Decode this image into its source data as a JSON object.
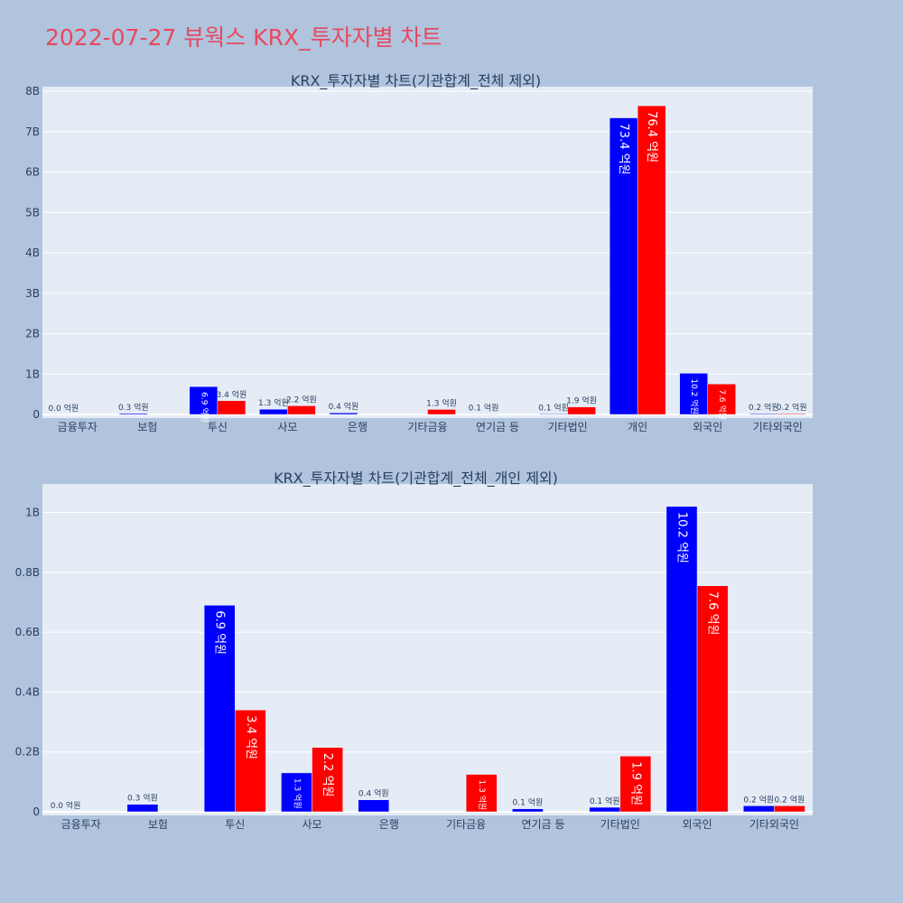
{
  "page_title": "2022-07-27 뷰웍스 KRX_투자자별 차트",
  "colors": {
    "buy": "#0000ff",
    "sell": "#ff0000",
    "plot_bg": "#e5ecf6",
    "page_bg": "#b0c4de",
    "title": "#e8485e",
    "text": "#2a3f5f"
  },
  "chart_data": [
    {
      "type": "bar",
      "title": "KRX_투자자별 차트(기관합계_전체 제외)",
      "xlabel": "",
      "ylabel": "",
      "categories": [
        "금융투자",
        "보험",
        "투신",
        "사모",
        "은행",
        "기타금융",
        "연기금 등",
        "기타법인",
        "개인",
        "외국인",
        "기타외국인"
      ],
      "ylim": [
        0,
        8000000000
      ],
      "yticks": [
        0,
        1000000000,
        2000000000,
        3000000000,
        4000000000,
        5000000000,
        6000000000,
        7000000000,
        8000000000
      ],
      "ytick_labels": [
        "0",
        "1B",
        "2B",
        "3B",
        "4B",
        "5B",
        "6B",
        "7B",
        "8B"
      ],
      "grid": true,
      "series": [
        {
          "color": "#0000ff",
          "values": [
            0,
            25000000,
            690000000,
            130000000,
            40000000,
            0,
            10000000,
            15000000,
            7340000000,
            1020000000,
            20000000
          ],
          "labels": [
            "0.0 억원",
            "0.3 억원",
            "6.9 억원",
            "1.3 억원",
            "0.4 억원",
            "",
            "0.1 억원",
            "0.1 억원",
            "73.4 억원",
            "10.2 억원",
            "0.2 억원"
          ]
        },
        {
          "color": "#ff0000",
          "values": [
            0,
            0,
            340000000,
            215000000,
            0,
            125000000,
            0,
            186000000,
            7640000000,
            755000000,
            20000000
          ],
          "labels": [
            "",
            "",
            "3.4 억원",
            "2.2 억원",
            "",
            "1.3 억원",
            "",
            "1.9 억원",
            "76.4 억원",
            "7.6 억원",
            "0.2 억원"
          ]
        }
      ]
    },
    {
      "type": "bar",
      "title": "KRX_투자자별 차트(기관합계_전체_개인 제외)",
      "xlabel": "",
      "ylabel": "",
      "categories": [
        "금융투자",
        "보험",
        "투신",
        "사모",
        "은행",
        "기타금융",
        "연기금 등",
        "기타법인",
        "외국인",
        "기타외국인"
      ],
      "ylim": [
        0,
        1080000000
      ],
      "yticks": [
        0,
        200000000,
        400000000,
        600000000,
        800000000,
        1000000000
      ],
      "ytick_labels": [
        "0",
        "0.2B",
        "0.4B",
        "0.6B",
        "0.8B",
        "1B"
      ],
      "grid": true,
      "series": [
        {
          "color": "#0000ff",
          "values": [
            0,
            25000000,
            690000000,
            130000000,
            40000000,
            0,
            10000000,
            15000000,
            1020000000,
            20000000
          ],
          "labels": [
            "0.0 억원",
            "0.3 억원",
            "6.9 억원",
            "1.3 억원",
            "0.4 억원",
            "",
            "0.1 억원",
            "0.1 억원",
            "10.2 억원",
            "0.2 억원"
          ]
        },
        {
          "color": "#ff0000",
          "values": [
            0,
            0,
            340000000,
            215000000,
            0,
            125000000,
            0,
            186000000,
            755000000,
            20000000
          ],
          "labels": [
            "",
            "",
            "3.4 억원",
            "2.2 억원",
            "",
            "1.3 억원",
            "",
            "1.9 억원",
            "7.6 억원",
            "0.2 억원"
          ]
        }
      ]
    }
  ]
}
